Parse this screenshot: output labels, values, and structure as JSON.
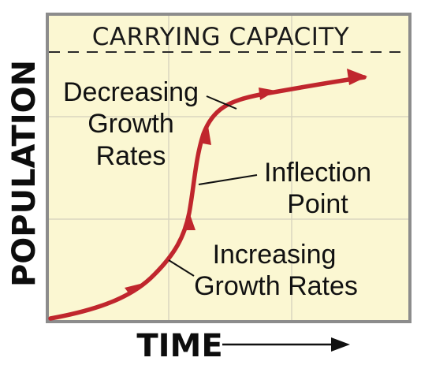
{
  "title": "CARRYING CAPACITY",
  "x_axis_label": "TIME",
  "y_axis_label": "POPULATION",
  "annotations": {
    "decreasing": [
      "Decreasing",
      "Growth",
      "Rates"
    ],
    "inflection": [
      "Inflection",
      "Point"
    ],
    "increasing": [
      "Increasing",
      "Growth Rates"
    ]
  },
  "colors": {
    "background": "#fbf7d2",
    "curve": "#c0262d",
    "grid": "#d9d6bf",
    "frame": "#8c8c8c"
  }
}
